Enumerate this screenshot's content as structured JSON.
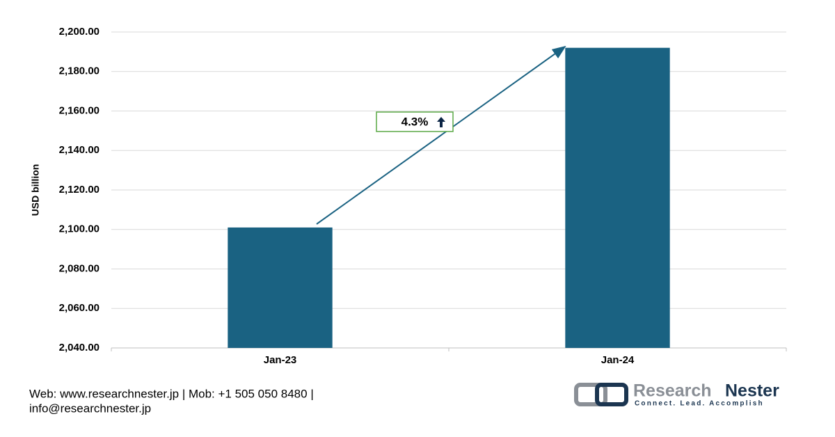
{
  "chart_data": {
    "type": "bar",
    "y_label": "USD billion",
    "categories": [
      "Jan-23",
      "Jan-24"
    ],
    "values": [
      2101,
      2192
    ],
    "color": "#1a6282",
    "ylim": [
      2040,
      2200
    ],
    "yticks": [
      {
        "value": 2040,
        "label": "2,040.00"
      },
      {
        "value": 2060,
        "label": "2,060.00"
      },
      {
        "value": 2080,
        "label": "2,080.00"
      },
      {
        "value": 2100,
        "label": "2,100.00"
      },
      {
        "value": 2120,
        "label": "2,120.00"
      },
      {
        "value": 2140,
        "label": "2,140.00"
      },
      {
        "value": 2160,
        "label": "2,160.00"
      },
      {
        "value": 2180,
        "label": "2,180.00"
      },
      {
        "value": 2200,
        "label": "2,200.00"
      }
    ],
    "grid": true,
    "annotation": "4.3%"
  },
  "footer": {
    "line1": "Web: www.researchnester.jp | Mob: +1 505 050 8480 |",
    "line2": "info@researchnester.jp"
  },
  "logo": {
    "name_first": "Research",
    "name_second": "Nester",
    "tagline": "Connect. Lead. Accomplish"
  }
}
